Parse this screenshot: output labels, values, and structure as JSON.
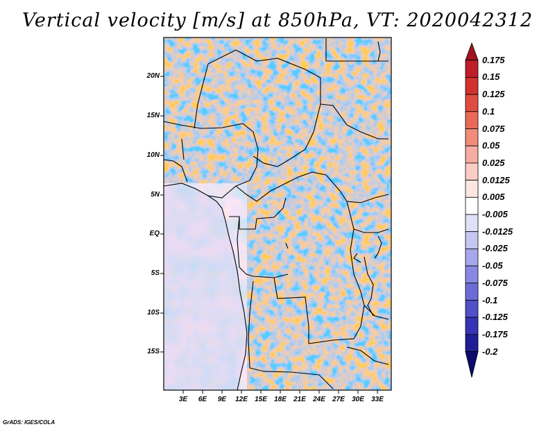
{
  "title": "Vertical velocity [m/s] at 850hPa, VT: 2020042312",
  "credit": "GrADS: IGES/COLA",
  "map": {
    "lat_labels": [
      "20N",
      "15N",
      "10N",
      "5N",
      "EQ",
      "5S",
      "10S",
      "15S"
    ],
    "lon_labels": [
      "3E",
      "6E",
      "9E",
      "12E",
      "15E",
      "18E",
      "21E",
      "24E",
      "27E",
      "30E",
      "33E"
    ]
  },
  "colorbar": {
    "labels": [
      "0.175",
      "0.15",
      "0.125",
      "0.1",
      "0.075",
      "0.05",
      "0.025",
      "0.0125",
      "0.005",
      "-0.005",
      "-0.0125",
      "-0.025",
      "-0.05",
      "-0.075",
      "-0.1",
      "-0.125",
      "-0.175",
      "-0.2"
    ],
    "colors": [
      "#a0141e",
      "#be1e28",
      "#d2322d",
      "#e14c41",
      "#ea6a5a",
      "#f08c78",
      "#f6aca0",
      "#fbcdc4",
      "#fde6e2",
      "#ffffff",
      "#e0e0f8",
      "#c6c6f2",
      "#a6a6ec",
      "#8888e4",
      "#6c6cd8",
      "#5050c8",
      "#3434b4",
      "#1e1e96",
      "#0c0c6e"
    ]
  }
}
